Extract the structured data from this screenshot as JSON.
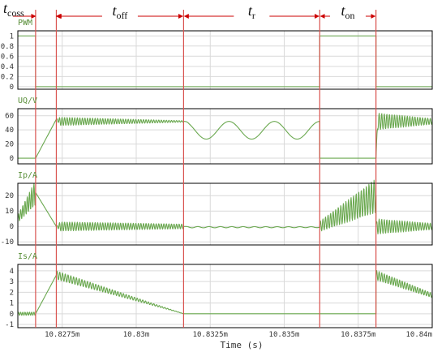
{
  "colors": {
    "signal": "#6aa84f",
    "divider": "#d9534f",
    "arrow": "#cc0000",
    "grid": "#d9d9d9",
    "frame": "#000000",
    "label": "#5a8f3a"
  },
  "chart_data": {
    "type": "line",
    "xlabel": "Time (s)",
    "x_unit": "m",
    "xlim": [
      10.826,
      10.84
    ],
    "x_ticks": [
      {
        "value": 10.8275,
        "label": "10.8275m"
      },
      {
        "value": 10.83,
        "label": "10.83m"
      },
      {
        "value": 10.8325,
        "label": "10.8325m"
      },
      {
        "value": 10.835,
        "label": "10.835m"
      },
      {
        "value": 10.8375,
        "label": "10.8375m"
      },
      {
        "value": 10.84,
        "label": "10.84m"
      }
    ],
    "grid": true,
    "interval_boundaries": [
      10.8266,
      10.8273,
      10.8316,
      10.8362,
      10.8381
    ],
    "intervals": [
      {
        "label": "t",
        "sub": "coss",
        "from": 10.8266,
        "to": 10.8273
      },
      {
        "label": "t",
        "sub": "off",
        "from": 10.8273,
        "to": 10.8316
      },
      {
        "label": "t",
        "sub": "r",
        "from": 10.8316,
        "to": 10.8362
      },
      {
        "label": "t",
        "sub": "on",
        "from": 10.8362,
        "to": 10.8381
      }
    ],
    "panels": [
      {
        "label": "PWM",
        "ylim": [
          -0.05,
          1.1
        ],
        "y_ticks": [
          "1",
          "0.8",
          "0.6",
          "0.4",
          "0.2",
          "0"
        ],
        "y_tick_values": [
          1,
          0.8,
          0.6,
          0.4,
          0.2,
          0
        ],
        "segments": [
          {
            "x0": 10.826,
            "x1": 10.8266,
            "start": 1,
            "mode": "flat",
            "level": 1
          },
          {
            "x0": 10.8266,
            "x1": 10.8362,
            "start": 0,
            "mode": "flat",
            "level": 0
          },
          {
            "x0": 10.8362,
            "x1": 10.8381,
            "start": 1,
            "mode": "flat",
            "level": 1
          },
          {
            "x0": 10.8381,
            "x1": 10.84,
            "start": 0,
            "mode": "flat",
            "level": 0
          }
        ]
      },
      {
        "label": "UQ/V",
        "ylim": [
          -8,
          70
        ],
        "y_ticks": [
          "60",
          "40",
          "20",
          "0"
        ],
        "y_tick_values": [
          60,
          40,
          20,
          0
        ],
        "segments": [
          {
            "x0": 10.826,
            "x1": 10.8266,
            "start": 0,
            "mode": "flat",
            "level": 0
          },
          {
            "x0": 10.8266,
            "x1": 10.8273,
            "start": 0,
            "mode": "ramp",
            "level": 55
          },
          {
            "x0": 10.8273,
            "x1": 10.8316,
            "start": 55,
            "mode": "ring",
            "level": 52,
            "amp": 6,
            "amp_end": 1,
            "periods": 50
          },
          {
            "x0": 10.8316,
            "x1": 10.8362,
            "start": 52,
            "mode": "resonant",
            "mean": 39.5,
            "amp": 12.5,
            "periods": 3
          },
          {
            "x0": 10.8362,
            "x1": 10.8381,
            "start": 0,
            "mode": "flat",
            "level": 0
          },
          {
            "x0": 10.8381,
            "x1": 10.84,
            "start": 0,
            "mode": "ring",
            "level": 52,
            "amp": 12,
            "amp_end": 4,
            "periods": 22
          }
        ]
      },
      {
        "label": "Ip/A",
        "ylim": [
          -12,
          28
        ],
        "y_ticks": [
          "20",
          "10",
          "0",
          "-10"
        ],
        "y_tick_values": [
          20,
          10,
          0,
          -10
        ],
        "segments": [
          {
            "x0": 10.826,
            "x1": 10.8266,
            "start": 5,
            "mode": "risingosc",
            "level": 22,
            "amp": 8,
            "periods": 8
          },
          {
            "x0": 10.8266,
            "x1": 10.8273,
            "start": 22,
            "mode": "ramp",
            "level": 0
          },
          {
            "x0": 10.8273,
            "x1": 10.8316,
            "start": 0,
            "mode": "ring",
            "level": 0,
            "amp": 3,
            "amp_end": 1.5,
            "periods": 50
          },
          {
            "x0": 10.8316,
            "x1": 10.8362,
            "start": 0,
            "mode": "ring",
            "level": -0.5,
            "amp": 0.4,
            "amp_end": 0.3,
            "periods": 12
          },
          {
            "x0": 10.8362,
            "x1": 10.8381,
            "start": 0,
            "mode": "risingosc",
            "level": 20,
            "amp": 11,
            "periods": 22
          },
          {
            "x0": 10.8381,
            "x1": 10.84,
            "start": 2,
            "mode": "ring",
            "level": 0,
            "amp": 5,
            "amp_end": 2,
            "periods": 22
          }
        ]
      },
      {
        "label": "Is/A",
        "ylim": [
          -1.3,
          4.6
        ],
        "y_ticks": [
          "4",
          "3",
          "2",
          "1",
          "0",
          "-1"
        ],
        "y_tick_values": [
          4,
          3,
          2,
          1,
          0,
          -1
        ],
        "segments": [
          {
            "x0": 10.826,
            "x1": 10.8266,
            "start": 0,
            "mode": "ring",
            "level": 0,
            "amp": 0.15,
            "amp_end": 0.15,
            "periods": 8
          },
          {
            "x0": 10.8266,
            "x1": 10.8273,
            "start": 0,
            "mode": "ramp",
            "level": 3.6
          },
          {
            "x0": 10.8273,
            "x1": 10.8316,
            "start": 3.6,
            "mode": "decayring",
            "level": 0,
            "amp": 0.4,
            "amp_end": 0,
            "periods": 46
          },
          {
            "x0": 10.8316,
            "x1": 10.8362,
            "start": 0,
            "mode": "flat",
            "level": 0
          },
          {
            "x0": 10.8362,
            "x1": 10.8381,
            "start": 0,
            "mode": "flat",
            "level": 0
          },
          {
            "x0": 10.8381,
            "x1": 10.84,
            "start": 3.6,
            "mode": "decayring",
            "level": 1.7,
            "amp": 0.45,
            "amp_end": 0.2,
            "periods": 22
          }
        ]
      }
    ]
  }
}
